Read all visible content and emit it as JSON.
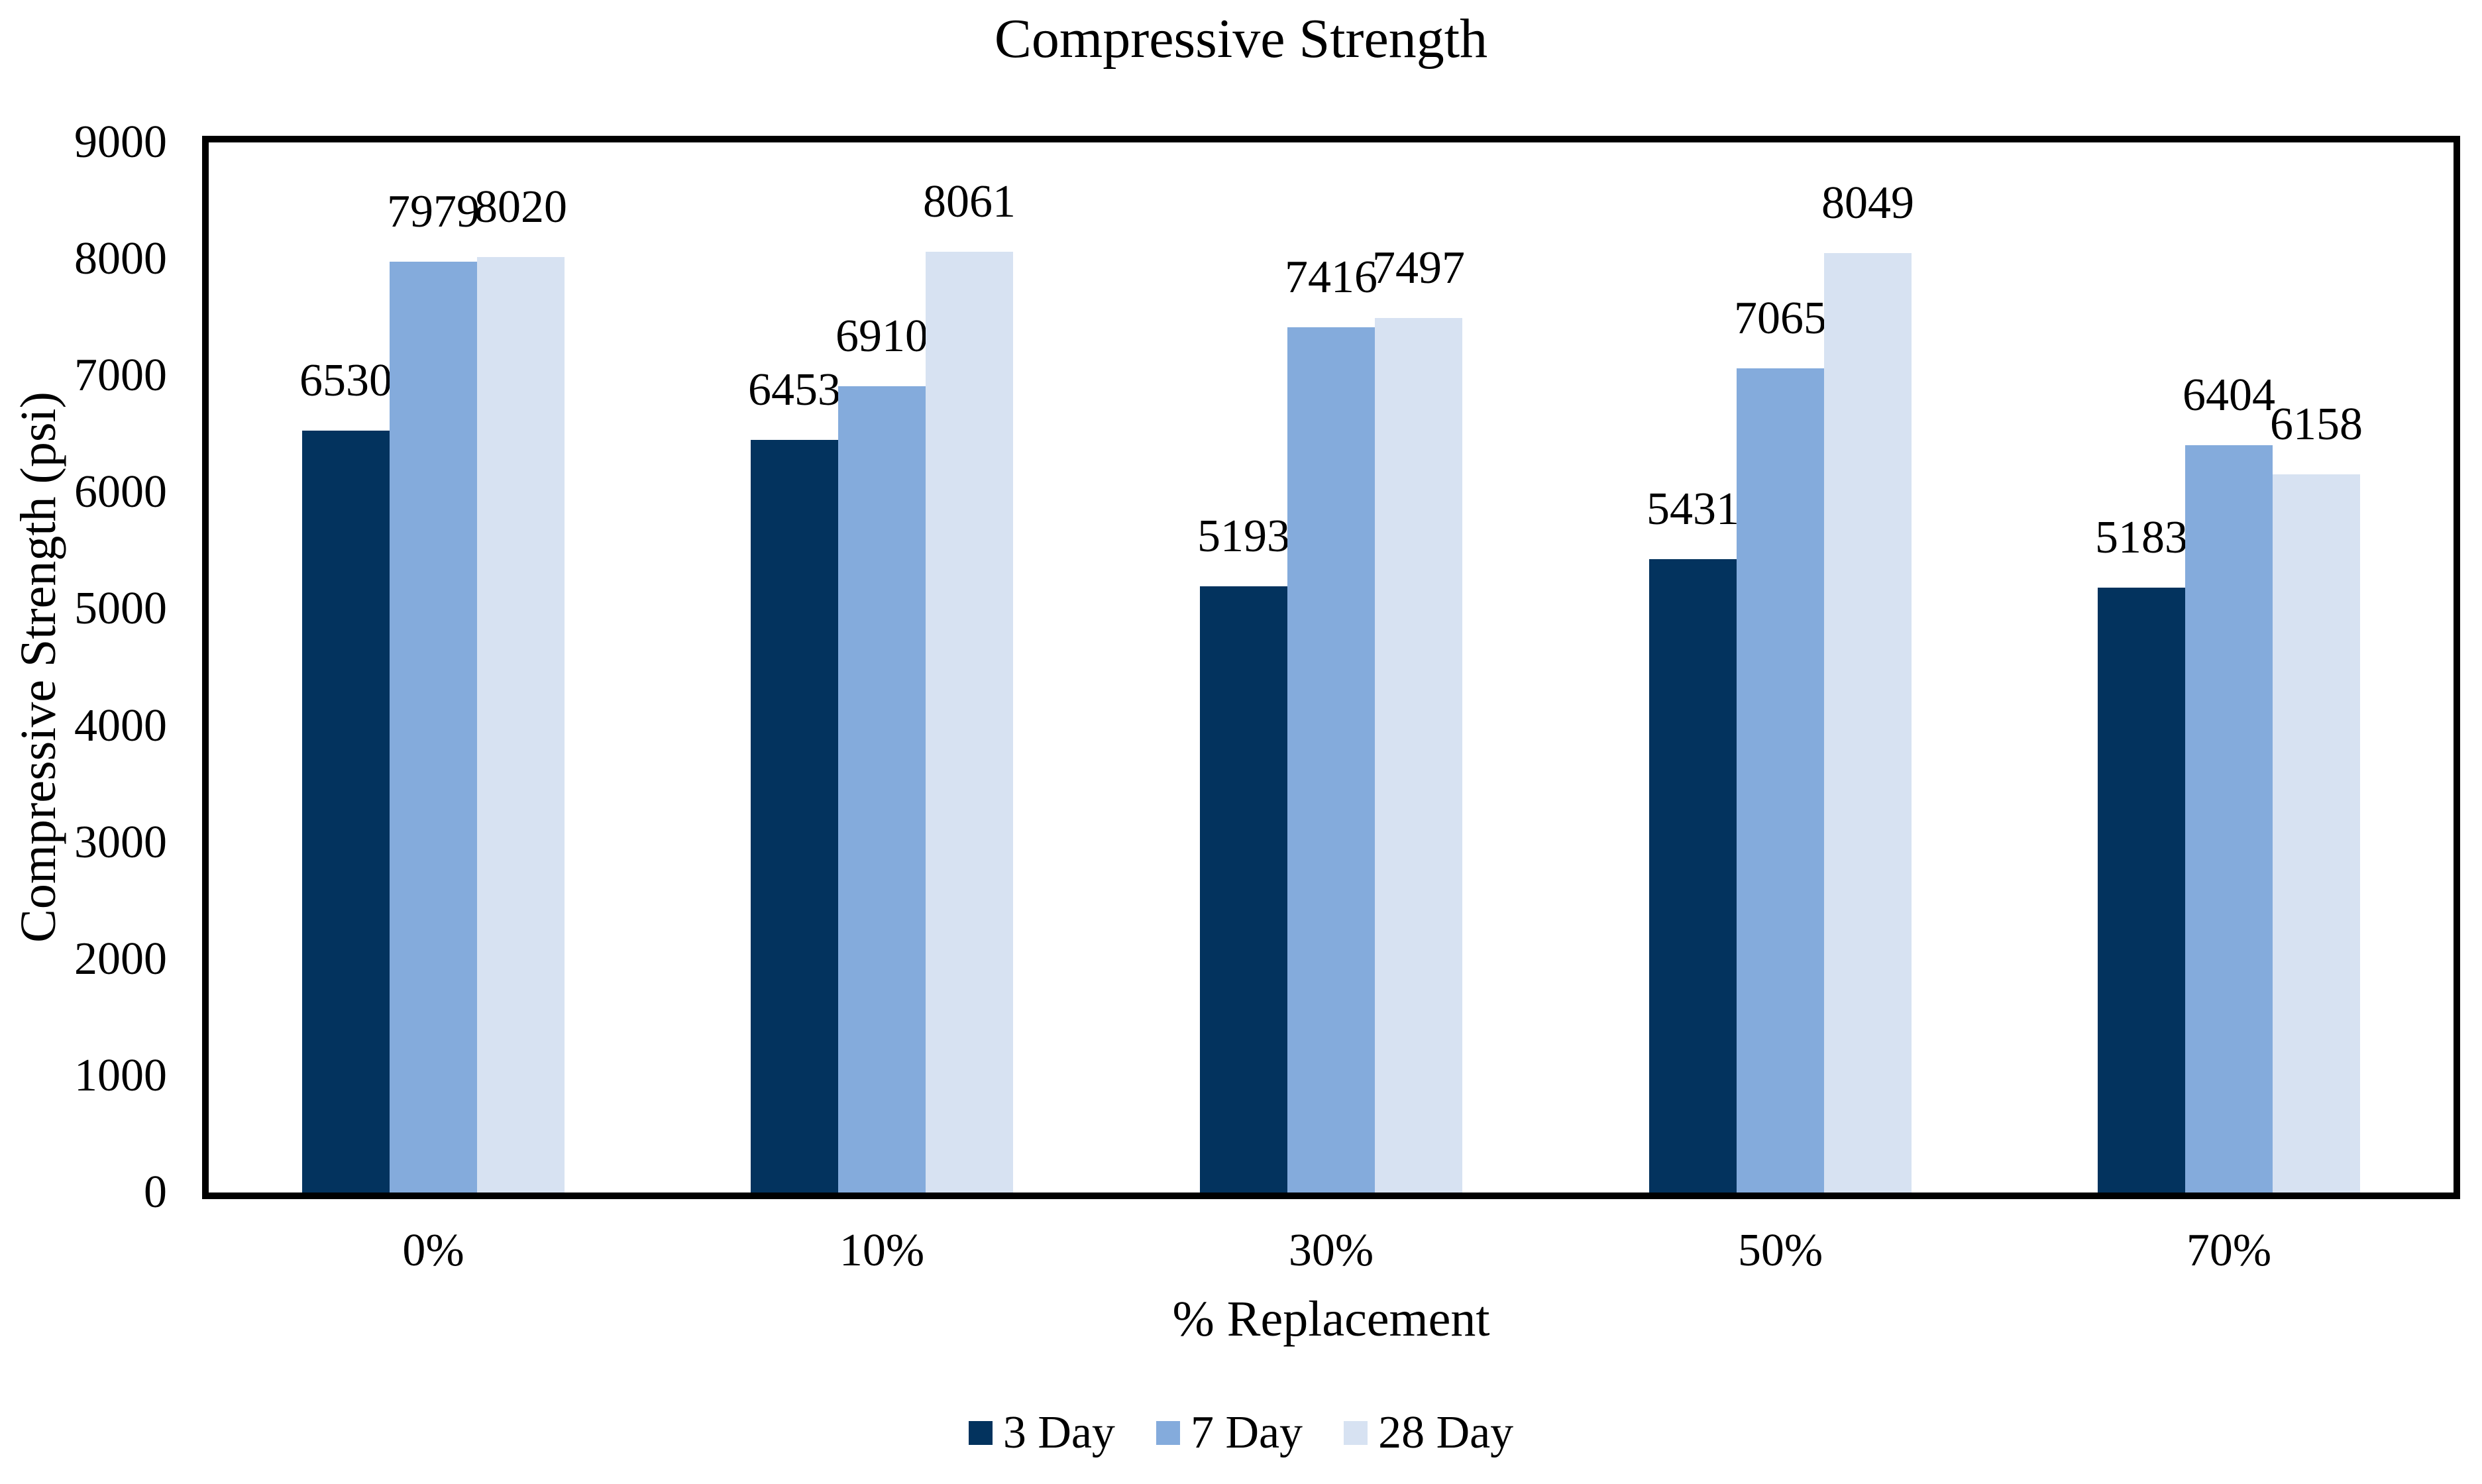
{
  "chart_data": {
    "type": "bar",
    "title": "Compressive Strength",
    "xlabel": "% Replacement",
    "ylabel": "Compressive Strength (psi)",
    "categories": [
      "0%",
      "10%",
      "30%",
      "50%",
      "70%"
    ],
    "series": [
      {
        "name": "3 Day",
        "color": "#03335e",
        "values": [
          6530,
          6453,
          5193,
          5431,
          5183
        ]
      },
      {
        "name": "7 Day",
        "color": "#84abdc",
        "values": [
          7979,
          6910,
          7416,
          7065,
          6404
        ]
      },
      {
        "name": "28 Day",
        "color": "#d7e2f2",
        "values": [
          8020,
          8061,
          7497,
          8049,
          6158
        ]
      }
    ],
    "ylim": [
      0,
      9000
    ],
    "ytick_step": 1000,
    "grid": false,
    "legend_position": "bottom",
    "axis_color": "#000000",
    "background_color": "#ffffff"
  }
}
